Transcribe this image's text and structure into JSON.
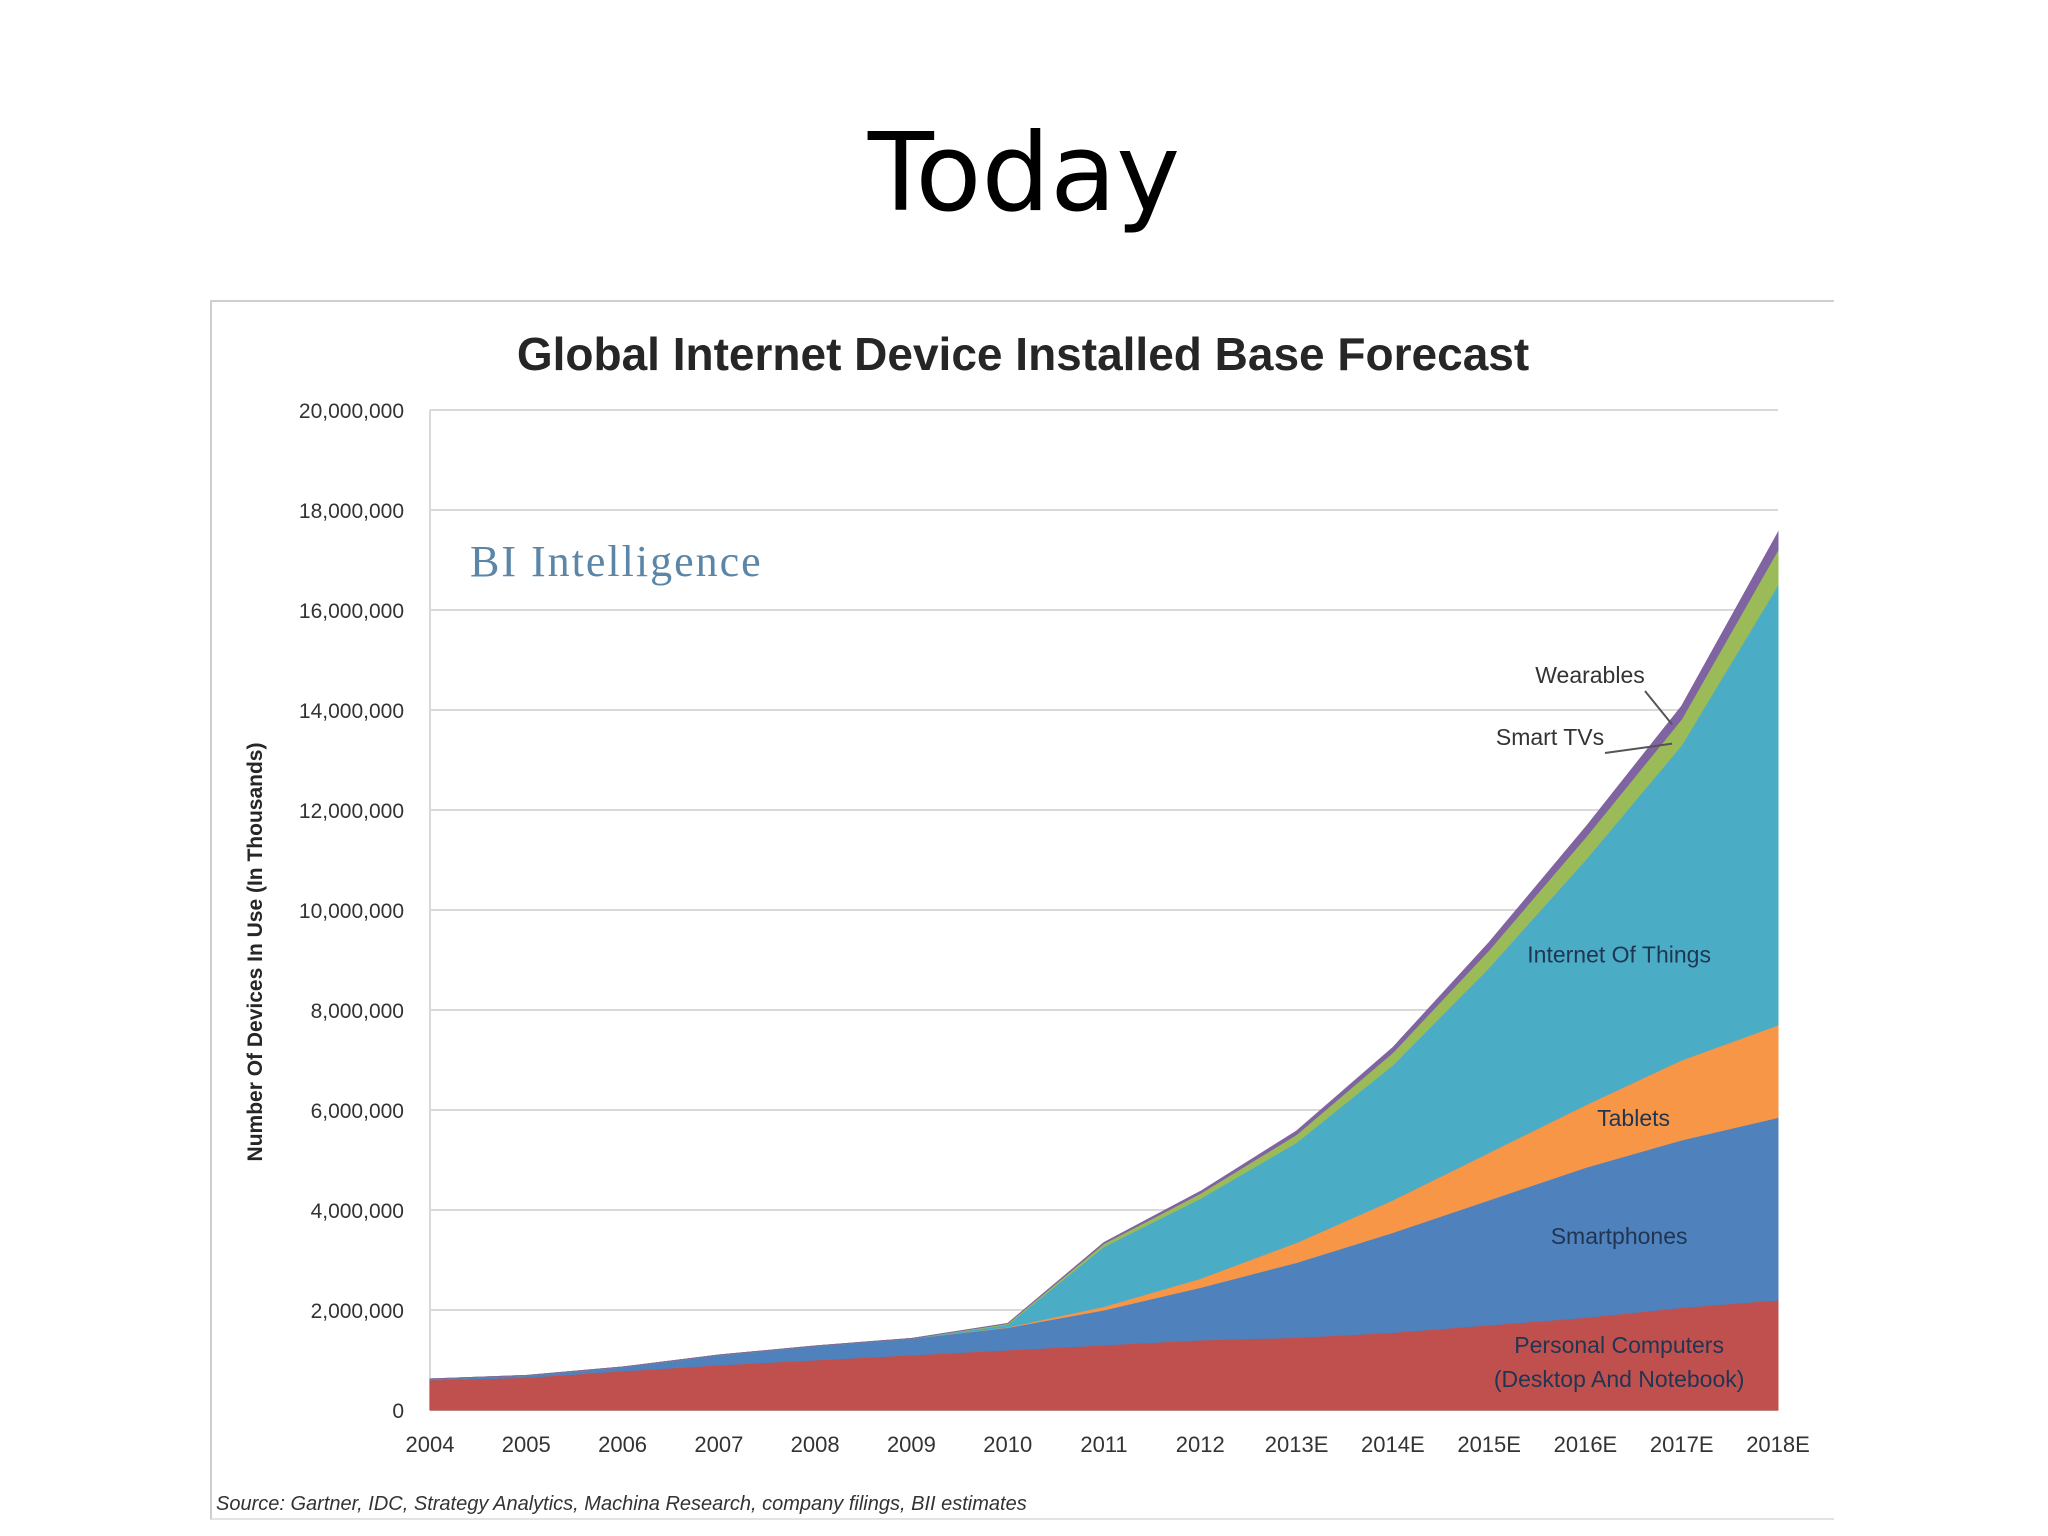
{
  "slide": {
    "title": "Today"
  },
  "chart_data": {
    "type": "area",
    "stacked": true,
    "title": "Global Internet Device Installed Base Forecast",
    "watermark": "BI Intelligence",
    "ylabel": "Number Of Devices In Use (In Thousands)",
    "xlabel": "",
    "ylim": [
      0,
      20000000
    ],
    "yticks": [
      0,
      2000000,
      4000000,
      6000000,
      8000000,
      10000000,
      12000000,
      14000000,
      16000000,
      18000000,
      20000000
    ],
    "ytick_labels": [
      "0",
      "2,000,000",
      "4,000,000",
      "6,000,000",
      "8,000,000",
      "10,000,000",
      "12,000,000",
      "14,000,000",
      "16,000,000",
      "18,000,000",
      "20,000,000"
    ],
    "categories": [
      "2004",
      "2005",
      "2006",
      "2007",
      "2008",
      "2009",
      "2010",
      "2011",
      "2012",
      "2013E",
      "2014E",
      "2015E",
      "2016E",
      "2017E",
      "2018E"
    ],
    "grid": true,
    "series": [
      {
        "name": "Personal Computers (Desktop And Notebook)",
        "label_lines": [
          "Personal Computers",
          "(Desktop And Notebook)"
        ],
        "color": "#c0504d",
        "values": [
          600000,
          650000,
          780000,
          900000,
          1000000,
          1100000,
          1200000,
          1300000,
          1400000,
          1450000,
          1550000,
          1700000,
          1850000,
          2050000,
          2200000
        ]
      },
      {
        "name": "Smartphones",
        "label_lines": [
          "Smartphones"
        ],
        "color": "#4f81bd",
        "values": [
          20000,
          40000,
          80000,
          200000,
          280000,
          330000,
          450000,
          700000,
          1050000,
          1500000,
          2000000,
          2500000,
          3000000,
          3350000,
          3650000
        ]
      },
      {
        "name": "Tablets",
        "label_lines": [
          "Tablets"
        ],
        "color": "#f79646",
        "values": [
          0,
          0,
          0,
          0,
          0,
          0,
          10000,
          70000,
          180000,
          400000,
          650000,
          950000,
          1250000,
          1600000,
          1850000
        ]
      },
      {
        "name": "Internet Of Things",
        "label_lines": [
          "Internet Of Things"
        ],
        "color": "#4bacc6",
        "values": [
          0,
          0,
          0,
          0,
          0,
          0,
          50000,
          1200000,
          1600000,
          2000000,
          2700000,
          3700000,
          4900000,
          6300000,
          8800000
        ]
      },
      {
        "name": "Smart TVs",
        "label_lines": [
          "Smart TVs"
        ],
        "color": "#9bbb59",
        "values": [
          0,
          0,
          0,
          0,
          0,
          0,
          20000,
          60000,
          100000,
          160000,
          250000,
          350000,
          450000,
          520000,
          700000
        ]
      },
      {
        "name": "Wearables",
        "label_lines": [
          "Wearables"
        ],
        "color": "#8064a2",
        "values": [
          0,
          0,
          0,
          0,
          0,
          0,
          0,
          20000,
          40000,
          70000,
          100000,
          150000,
          200000,
          260000,
          350000
        ]
      }
    ],
    "source": "Source: Gartner, IDC, Strategy Analytics, Machina Research, company filings, BII estimates"
  }
}
